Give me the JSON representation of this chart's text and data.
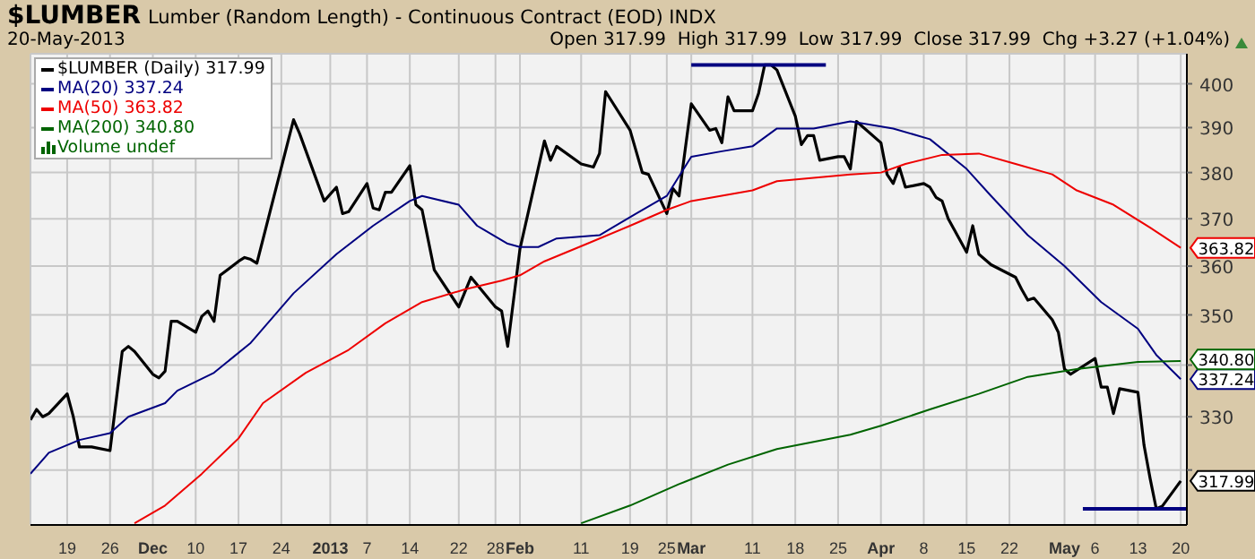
{
  "chart_data": {
    "type": "line",
    "title": "$LUMBER",
    "subtitle": "Lumber (Random Length) - Continuous Contract (EOD) INDX",
    "annotations": [
      "20-May-2013",
      "Open 317.99  High 317.99  Low 317.99  Close 317.99  Chg +3.27 (+1.04%)",
      "Volume undef"
    ],
    "log": true,
    "grid": true,
    "legend": "top left",
    "xlim": [
      "2012-11-13",
      "2013-05-21"
    ],
    "xticks": [
      {
        "value": "2012-11-19",
        "label": "19"
      },
      {
        "value": "2012-11-26",
        "label": "26"
      },
      {
        "value": "2012-12-03",
        "label": "Dec"
      },
      {
        "value": "2012-12-10",
        "label": "10"
      },
      {
        "value": "2012-12-17",
        "label": "17"
      },
      {
        "value": "2012-12-24",
        "label": "24"
      },
      {
        "value": "2013-01-01",
        "label": "2013"
      },
      {
        "value": "2013-01-07",
        "label": "7"
      },
      {
        "value": "2013-01-14",
        "label": "14"
      },
      {
        "value": "2013-01-22",
        "label": "22"
      },
      {
        "value": "2013-01-28",
        "label": "28"
      },
      {
        "value": "2013-02-01",
        "label": "Feb"
      },
      {
        "value": "2013-02-11",
        "label": "11"
      },
      {
        "value": "2013-02-19",
        "label": "19"
      },
      {
        "value": "2013-02-25",
        "label": "25"
      },
      {
        "value": "2013-03-01",
        "label": "Mar"
      },
      {
        "value": "2013-03-11",
        "label": "11"
      },
      {
        "value": "2013-03-18",
        "label": "18"
      },
      {
        "value": "2013-03-25",
        "label": "25"
      },
      {
        "value": "2013-04-01",
        "label": "Apr"
      },
      {
        "value": "2013-04-08",
        "label": "8"
      },
      {
        "value": "2013-04-15",
        "label": "15"
      },
      {
        "value": "2013-04-22",
        "label": "22"
      },
      {
        "value": "2013-05-01",
        "label": "May"
      },
      {
        "value": "2013-05-06",
        "label": "6"
      },
      {
        "value": "2013-05-13",
        "label": "13"
      },
      {
        "value": "2013-05-20",
        "label": "20"
      }
    ],
    "ylim": [
      310,
      407
    ],
    "yticks": [
      {
        "value": 320,
        "label": null
      },
      330,
      {
        "value": 340,
        "label": null
      },
      350,
      360,
      370,
      380,
      390,
      400
    ],
    "ref_lines": [
      {
        "axis": "y",
        "value": 404.4,
        "color": "#000080"
      },
      {
        "axis": "y",
        "value": 312.9,
        "color": "#000080"
      }
    ],
    "series": [
      {
        "name": "$LUMBER (Daily) 317.99",
        "color": "#000000",
        "x": [
          "2012-11-13",
          "2012-11-14",
          "2012-11-15",
          "2012-11-16",
          "2012-11-19",
          "2012-11-20",
          "2012-11-21",
          "2012-11-23",
          "2012-11-26",
          "2012-11-28",
          "2012-11-29",
          "2012-11-30",
          "2012-12-03",
          "2012-12-04",
          "2012-12-05",
          "2012-12-06",
          "2012-12-07",
          "2012-12-10",
          "2012-12-11",
          "2012-12-12",
          "2012-12-13",
          "2012-12-14",
          "2012-12-17",
          "2012-12-18",
          "2012-12-19",
          "2012-12-20",
          "2012-12-26",
          "2012-12-27",
          "2012-12-31",
          "2013-01-02",
          "2013-01-03",
          "2013-01-04",
          "2013-01-07",
          "2013-01-08",
          "2013-01-09",
          "2013-01-10",
          "2013-01-11",
          "2013-01-14",
          "2013-01-15",
          "2013-01-16",
          "2013-01-18",
          "2013-01-22",
          "2013-01-24",
          "2013-01-28",
          "2013-01-29",
          "2013-01-30",
          "2013-02-01",
          "2013-02-05",
          "2013-02-06",
          "2013-02-07",
          "2013-02-11",
          "2013-02-13",
          "2013-02-14",
          "2013-02-15",
          "2013-02-19",
          "2013-02-21",
          "2013-02-22",
          "2013-02-25",
          "2013-02-26",
          "2013-02-27",
          "2013-03-01",
          "2013-03-04",
          "2013-03-05",
          "2013-03-06",
          "2013-03-07",
          "2013-03-08",
          "2013-03-11",
          "2013-03-12",
          "2013-03-13",
          "2013-03-14",
          "2013-03-15",
          "2013-03-18",
          "2013-03-19",
          "2013-03-20",
          "2013-03-21",
          "2013-03-22",
          "2013-03-25",
          "2013-03-26",
          "2013-03-27",
          "2013-03-28",
          "2013-04-01",
          "2013-04-02",
          "2013-04-03",
          "2013-04-04",
          "2013-04-05",
          "2013-04-08",
          "2013-04-09",
          "2013-04-10",
          "2013-04-11",
          "2013-04-12",
          "2013-04-15",
          "2013-04-16",
          "2013-04-17",
          "2013-04-19",
          "2013-04-23",
          "2013-04-24",
          "2013-04-25",
          "2013-04-26",
          "2013-04-29",
          "2013-04-30",
          "2013-05-01",
          "2013-05-02",
          "2013-05-06",
          "2013-05-07",
          "2013-05-08",
          "2013-05-09",
          "2013-05-10",
          "2013-05-13",
          "2013-05-14",
          "2013-05-15",
          "2013-05-16",
          "2013-05-17",
          "2013-05-20"
        ],
        "values": [
          329.4,
          331.4,
          330.0,
          330.6,
          334.4,
          330.0,
          324.3,
          324.3,
          323.6,
          342.7,
          343.7,
          342.7,
          338.2,
          337.5,
          338.8,
          348.7,
          348.7,
          346.5,
          349.7,
          350.8,
          348.7,
          358.1,
          361.0,
          361.8,
          361.4,
          360.6,
          391.8,
          388.6,
          373.8,
          376.8,
          371.1,
          371.5,
          377.6,
          372.3,
          371.9,
          375.7,
          375.7,
          381.5,
          373.0,
          371.9,
          359.2,
          351.6,
          357.7,
          351.6,
          350.8,
          343.7,
          363.6,
          387.0,
          382.7,
          385.8,
          381.9,
          381.2,
          384.2,
          398.2,
          389.4,
          380.0,
          379.6,
          371.1,
          376.5,
          374.9,
          395.4,
          389.4,
          389.8,
          386.6,
          397.0,
          393.8,
          393.8,
          397.8,
          404.4,
          404.4,
          403.2,
          392.6,
          386.2,
          388.2,
          388.2,
          382.7,
          383.5,
          383.5,
          380.8,
          391.4,
          386.6,
          379.6,
          377.6,
          381.2,
          376.8,
          377.6,
          376.8,
          374.6,
          373.8,
          370.0,
          362.9,
          368.5,
          362.5,
          360.3,
          357.7,
          355.2,
          353.0,
          353.4,
          349.0,
          346.5,
          339.2,
          338.2,
          341.3,
          335.7,
          335.7,
          330.6,
          335.4,
          334.7,
          324.6,
          318.4,
          312.9,
          313.4,
          317.99
        ],
        "value_labels": [
          null,
          null,
          null,
          null,
          null,
          null,
          null,
          null,
          null,
          null,
          null,
          null,
          null,
          null,
          null,
          null,
          null,
          null,
          null,
          null,
          null,
          null,
          null,
          null,
          null,
          null,
          null,
          null,
          null,
          null,
          null,
          null,
          null,
          null,
          null,
          null,
          null,
          null,
          null,
          null,
          null,
          null,
          null,
          null,
          null,
          null,
          null,
          null,
          null,
          null,
          null,
          null,
          null,
          null,
          null,
          null,
          null,
          null,
          null,
          null,
          null,
          null,
          null,
          null,
          null,
          null,
          null,
          null,
          null,
          null,
          null,
          null,
          null,
          null,
          null,
          null,
          null,
          null,
          null,
          null,
          null,
          null,
          null,
          null,
          null,
          null,
          null,
          null,
          null,
          null,
          null,
          null,
          null,
          null,
          null,
          null,
          null,
          null,
          null,
          null,
          null,
          null,
          null,
          null,
          null,
          null,
          null,
          null,
          null,
          null,
          null,
          null,
          "317.99"
        ]
      },
      {
        "name": "MA(20) 337.24",
        "color": "#000080",
        "x": [
          "2012-11-13",
          "2012-11-16",
          "2012-11-21",
          "2012-11-26",
          "2012-11-29",
          "2012-12-05",
          "2012-12-07",
          "2012-12-13",
          "2012-12-19",
          "2012-12-26",
          "2013-01-02",
          "2013-01-08",
          "2013-01-14",
          "2013-01-16",
          "2013-01-22",
          "2013-01-25",
          "2013-01-30",
          "2013-02-01",
          "2013-02-04",
          "2013-02-07",
          "2013-02-14",
          "2013-02-20",
          "2013-02-25",
          "2013-03-01",
          "2013-03-06",
          "2013-03-11",
          "2013-03-15",
          "2013-03-21",
          "2013-03-27",
          "2013-04-03",
          "2013-04-09",
          "2013-04-15",
          "2013-04-19",
          "2013-04-25",
          "2013-05-01",
          "2013-05-07",
          "2013-05-13",
          "2013-05-16",
          "2013-05-20"
        ],
        "values": [
          319.3,
          323.2,
          325.6,
          326.9,
          330.0,
          332.6,
          335.0,
          338.5,
          344.4,
          354.4,
          362.5,
          368.5,
          373.8,
          374.9,
          373.0,
          368.5,
          364.7,
          364.0,
          364.0,
          365.8,
          366.5,
          371.1,
          374.9,
          383.5,
          384.7,
          385.8,
          389.8,
          389.8,
          391.4,
          389.8,
          387.4,
          380.8,
          374.9,
          366.5,
          360.0,
          352.6,
          347.2,
          342.0,
          337.24
        ],
        "value_labels": [
          null,
          null,
          null,
          null,
          null,
          null,
          null,
          null,
          null,
          null,
          null,
          null,
          null,
          null,
          null,
          null,
          null,
          null,
          null,
          null,
          null,
          null,
          null,
          null,
          null,
          null,
          null,
          null,
          null,
          null,
          null,
          null,
          null,
          null,
          null,
          null,
          null,
          null,
          "337.24"
        ]
      },
      {
        "name": "MA(50) 363.82",
        "color": "#ee0000",
        "x": [
          "2012-11-30",
          "2012-12-05",
          "2012-12-11",
          "2012-12-17",
          "2012-12-21",
          "2012-12-28",
          "2013-01-04",
          "2013-01-10",
          "2013-01-16",
          "2013-01-23",
          "2013-01-29",
          "2013-02-01",
          "2013-02-05",
          "2013-02-12",
          "2013-02-19",
          "2013-02-25",
          "2013-03-01",
          "2013-03-11",
          "2013-03-15",
          "2013-03-27",
          "2013-04-01",
          "2013-04-05",
          "2013-04-11",
          "2013-04-17",
          "2013-04-23",
          "2013-04-29",
          "2013-05-03",
          "2013-05-09",
          "2013-05-15",
          "2013-05-20"
        ],
        "values": [
          310.3,
          313.5,
          319.3,
          325.9,
          332.6,
          338.5,
          343.0,
          348.3,
          352.6,
          355.2,
          357.0,
          358.1,
          361.0,
          364.7,
          368.5,
          371.9,
          373.8,
          376.1,
          378.1,
          379.6,
          380.0,
          381.9,
          383.9,
          384.2,
          381.9,
          379.6,
          376.1,
          373.0,
          368.1,
          363.82
        ],
        "value_labels": [
          null,
          null,
          null,
          null,
          null,
          null,
          null,
          null,
          null,
          null,
          null,
          null,
          null,
          null,
          null,
          null,
          null,
          null,
          null,
          null,
          null,
          null,
          null,
          null,
          null,
          null,
          null,
          null,
          null,
          "363.82"
        ]
      },
      {
        "name": "MA(200) 340.80",
        "color": "#006400",
        "x": [
          "2013-02-11",
          "2013-02-19",
          "2013-02-27",
          "2013-03-07",
          "2013-03-15",
          "2013-03-27",
          "2013-04-01",
          "2013-04-09",
          "2013-04-17",
          "2013-04-25",
          "2013-05-03",
          "2013-05-13",
          "2013-05-20"
        ],
        "values": [
          310.3,
          313.5,
          317.4,
          321.0,
          323.9,
          326.6,
          328.3,
          331.4,
          334.4,
          337.7,
          339.2,
          340.6,
          340.8
        ],
        "value_labels": [
          null,
          null,
          null,
          null,
          null,
          null,
          null,
          null,
          null,
          null,
          null,
          null,
          "340.80"
        ]
      }
    ]
  }
}
